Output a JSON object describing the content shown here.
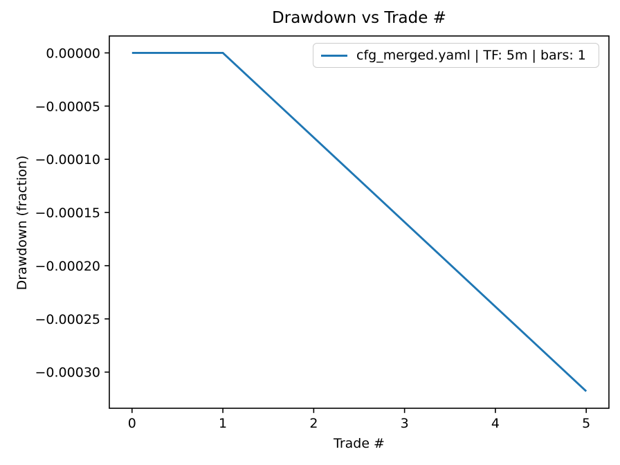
{
  "figure": {
    "background": "#ffffff"
  },
  "chart_data": {
    "type": "line",
    "title": "Drawdown vs Trade #",
    "xlabel": "Trade #",
    "ylabel": "Drawdown (fraction)",
    "x": [
      0,
      1,
      2,
      3,
      4,
      5
    ],
    "series": [
      {
        "name": "cfg_merged.yaml | TF: 5m | bars: 1",
        "values": [
          0.0,
          0.0,
          -7.95e-05,
          -0.000159,
          -0.0002385,
          -0.000318
        ],
        "color": "#1f77b4"
      }
    ],
    "xlim": [
      -0.25,
      5.25
    ],
    "ylim": [
      -0.000334,
      1.59e-05
    ],
    "xticks": {
      "values": [
        0,
        1,
        2,
        3,
        4,
        5
      ],
      "labels": [
        "0",
        "1",
        "2",
        "3",
        "4",
        "5"
      ]
    },
    "yticks": {
      "values": [
        0.0,
        -5e-05,
        -0.0001,
        -0.00015,
        -0.0002,
        -0.00025,
        -0.0003
      ],
      "labels": [
        "0.00000",
        "−0.00005",
        "−0.00010",
        "−0.00015",
        "−0.00020",
        "−0.00025",
        "−0.00030"
      ]
    },
    "grid": false,
    "legend_position": "upper-right",
    "axis_color": "#000000",
    "line_color": "#1f77b4"
  }
}
